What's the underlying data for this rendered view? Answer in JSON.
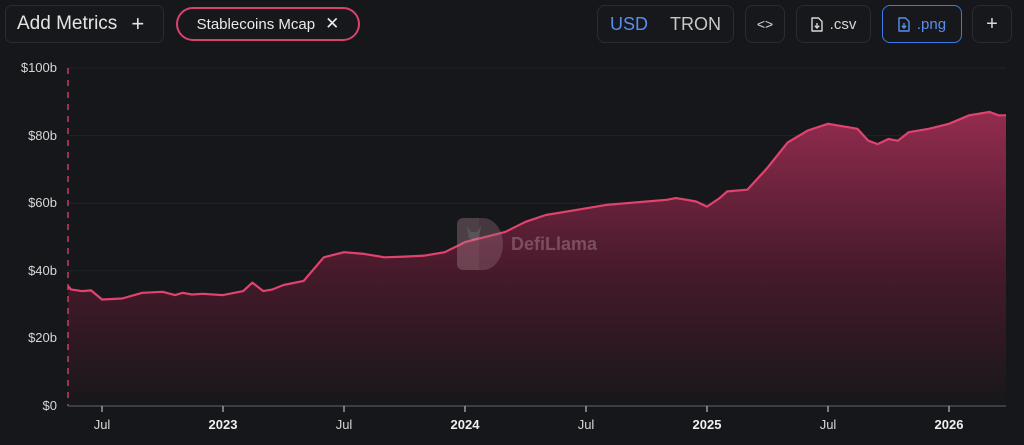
{
  "toolbar": {
    "add_metrics_label": "Add Metrics",
    "add_metrics_icon": "+",
    "active_metric": {
      "label": "Stablecoins Mcap",
      "remove_icon": "✕",
      "color": "#d8426c"
    },
    "currency_options": [
      {
        "label": "USD",
        "selected": true
      },
      {
        "label": "TRON",
        "selected": false
      }
    ],
    "embed_icon": "<>",
    "csv_label": ".csv",
    "png_label": ".png",
    "add_chart_icon": "+",
    "accent_color": "#5b8dee"
  },
  "watermark": {
    "label": "DefiLlama"
  },
  "chart_data": {
    "type": "area",
    "title": "Stablecoins Mcap",
    "xlabel": "",
    "ylabel": "",
    "y_unit": "$b",
    "ylim": [
      0,
      100
    ],
    "y_ticks": [
      "$0",
      "$20b",
      "$40b",
      "$60b",
      "$80b",
      "$100b"
    ],
    "x_ticks": [
      {
        "label": "Jul",
        "year": false
      },
      {
        "label": "2023",
        "year": true
      },
      {
        "label": "Jul",
        "year": false
      },
      {
        "label": "2024",
        "year": true
      },
      {
        "label": "Jul",
        "year": false
      },
      {
        "label": "2025",
        "year": true
      },
      {
        "label": "Jul",
        "year": false
      },
      {
        "label": "2026",
        "year": true
      }
    ],
    "grid": true,
    "legend": "none",
    "line_color": "#e0436e",
    "x": [
      "2022-05",
      "2022-05-15",
      "2022-06",
      "2022-06-15",
      "2022-07",
      "2022-08",
      "2022-09",
      "2022-10",
      "2022-10-20",
      "2022-11",
      "2022-11-15",
      "2022-12",
      "2023-01",
      "2023-02",
      "2023-02-15",
      "2023-03",
      "2023-03-15",
      "2023-04",
      "2023-05",
      "2023-06",
      "2023-07",
      "2023-08",
      "2023-09",
      "2023-10",
      "2023-11",
      "2023-12",
      "2024-01",
      "2024-02",
      "2024-03",
      "2024-04",
      "2024-05",
      "2024-06",
      "2024-07",
      "2024-08",
      "2024-09",
      "2024-10",
      "2024-11",
      "2024-11-15",
      "2024-12",
      "2024-12-15",
      "2025-01",
      "2025-01-20",
      "2025-02",
      "2025-03",
      "2025-04",
      "2025-05",
      "2025-06",
      "2025-07",
      "2025-08",
      "2025-08-15",
      "2025-09",
      "2025-09-15",
      "2025-10",
      "2025-10-15",
      "2025-11",
      "2025-12",
      "2026-01",
      "2026-02",
      "2026-03",
      "2026-03-15",
      "2026-04"
    ],
    "values": [
      35.5,
      34.5,
      34.0,
      34.2,
      31.5,
      31.8,
      33.5,
      33.8,
      32.8,
      33.5,
      33.0,
      33.2,
      32.8,
      34.0,
      36.5,
      34.0,
      34.5,
      35.8,
      37.0,
      44.0,
      45.5,
      45.0,
      44.0,
      44.2,
      44.5,
      45.5,
      48.5,
      50.0,
      51.5,
      54.5,
      56.5,
      57.5,
      58.5,
      59.5,
      60.0,
      60.5,
      61.0,
      61.5,
      61.0,
      60.5,
      59.0,
      61.5,
      63.5,
      64.0,
      70.5,
      78.0,
      81.5,
      83.5,
      82.5,
      82.0,
      78.5,
      77.5,
      79.0,
      78.5,
      81.0,
      82.0,
      83.5,
      86.0,
      87.0,
      86.0,
      86.0
    ]
  }
}
